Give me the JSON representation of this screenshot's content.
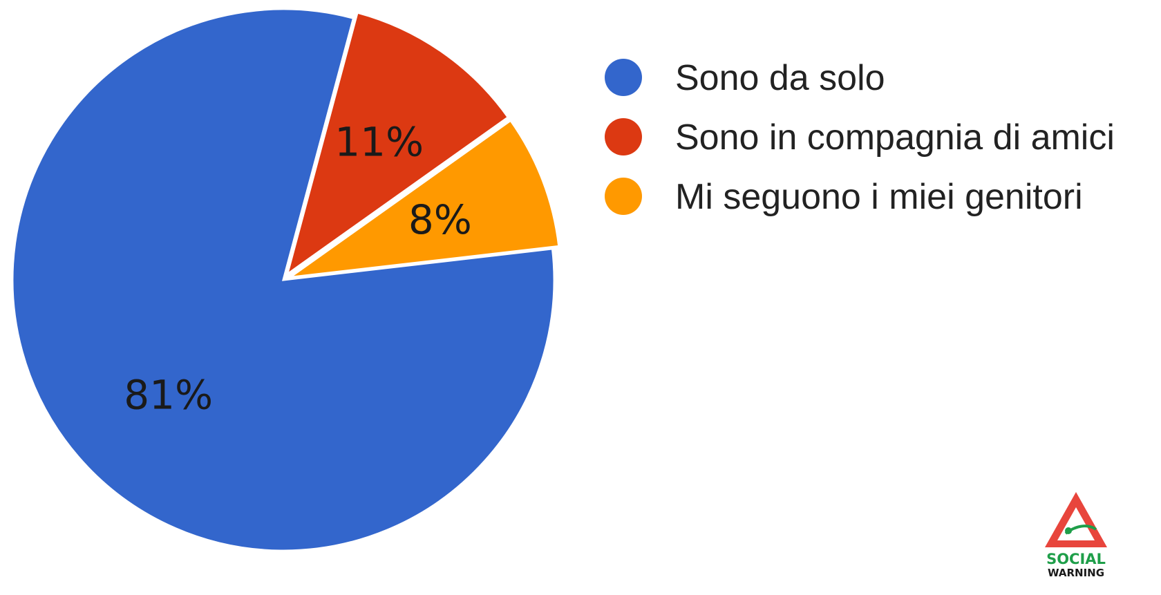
{
  "chart_data": {
    "type": "pie",
    "slices": [
      {
        "label": "Sono da solo",
        "value": 81,
        "display": "81%",
        "color": "#3366cc"
      },
      {
        "label": "Sono in compagnia di amici",
        "value": 11,
        "display": "11%",
        "color": "#dc3912"
      },
      {
        "label": "Mi seguono i miei genitori",
        "value": 8,
        "display": "8%",
        "color": "#ff9900"
      }
    ],
    "legend_position": "right",
    "start_angle_deg": 15,
    "exploded": true
  },
  "logo": {
    "line1": "SOCIAL",
    "line2": "WARNING",
    "triangle_color": "#e8453c",
    "text_color": "#1e9e49"
  }
}
